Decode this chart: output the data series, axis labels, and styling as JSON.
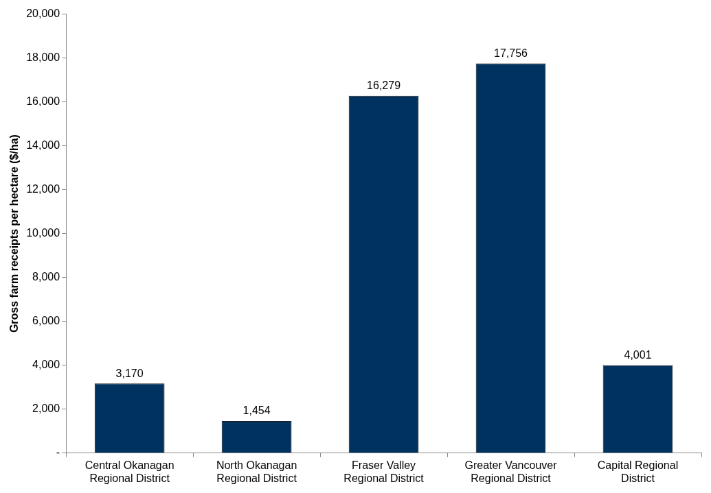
{
  "chart_data": {
    "type": "bar",
    "ylabel": "Gross farm receipts per hectare ($/ha)",
    "categories": [
      "Central Okanagan Regional District",
      "North Okanagan Regional District",
      "Fraser Valley Regional District",
      "Greater Vancouver Regional District",
      "Capital Regional District"
    ],
    "values": [
      3170,
      1454,
      16279,
      17756,
      4001
    ],
    "color": "#00325f",
    "ylim": [
      0,
      20000
    ],
    "yticks": [
      {
        "value": 0,
        "label": "-"
      },
      {
        "value": 2000,
        "label": "2,000"
      },
      {
        "value": 4000,
        "label": "4,000"
      },
      {
        "value": 6000,
        "label": "6,000"
      },
      {
        "value": 8000,
        "label": "8,000"
      },
      {
        "value": 10000,
        "label": "10,000"
      },
      {
        "value": 12000,
        "label": "12,000"
      },
      {
        "value": 14000,
        "label": "14,000"
      },
      {
        "value": 16000,
        "label": "16,000"
      },
      {
        "value": 18000,
        "label": "18,000"
      },
      {
        "value": 20000,
        "label": "20,000"
      }
    ],
    "value_labels": [
      "3,170",
      "1,454",
      "16,279",
      "17,756",
      "4,001"
    ],
    "grid": false,
    "legend": false
  }
}
